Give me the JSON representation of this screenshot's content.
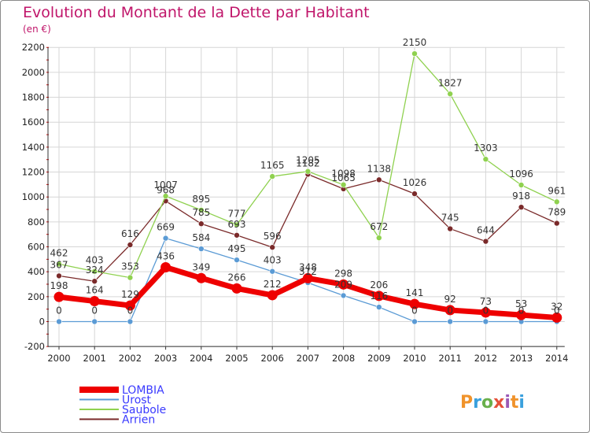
{
  "chart_data": {
    "type": "line",
    "title": "Evolution du Montant de la Dette par Habitant",
    "unit": "(en €)",
    "xlabel": "",
    "ylabel": "",
    "ylim": [
      -200,
      2200
    ],
    "yticks": [
      -200,
      0,
      200,
      400,
      600,
      800,
      1000,
      1200,
      1400,
      1600,
      1800,
      2000,
      2200
    ],
    "categories": [
      "2000",
      "2001",
      "2002",
      "2003",
      "2004",
      "2005",
      "2006",
      "2007",
      "2008",
      "2009",
      "2010",
      "2011",
      "2012",
      "2013",
      "2014"
    ],
    "series": [
      {
        "name": "LOMBIA",
        "color": "#ee0000",
        "values": [
          198,
          164,
          129,
          436,
          349,
          266,
          212,
          348,
          298,
          206,
          141,
          92,
          73,
          53,
          32
        ]
      },
      {
        "name": "Urost",
        "color": "#5b9bd5",
        "values": [
          0,
          0,
          0,
          669,
          584,
          495,
          403,
          312,
          209,
          116,
          0,
          0,
          0,
          0,
          0
        ]
      },
      {
        "name": "Saubole",
        "color": "#8fd14f",
        "values": [
          462,
          403,
          353,
          1007,
          895,
          777,
          1165,
          1205,
          1098,
          672,
          2150,
          1827,
          1303,
          1096,
          961
        ]
      },
      {
        "name": "Arrien",
        "color": "#7a2a2a",
        "values": [
          367,
          324,
          616,
          968,
          785,
          693,
          596,
          1182,
          1065,
          1138,
          1026,
          745,
          644,
          918,
          789
        ]
      }
    ],
    "legend_position": "bottom-left"
  },
  "logo": {
    "text": "Proxiti",
    "colors": [
      "#f0932b",
      "#3aa0dd",
      "#6ab04c",
      "#e55039",
      "#9b59b6",
      "#f0932b",
      "#3aa0dd"
    ]
  }
}
